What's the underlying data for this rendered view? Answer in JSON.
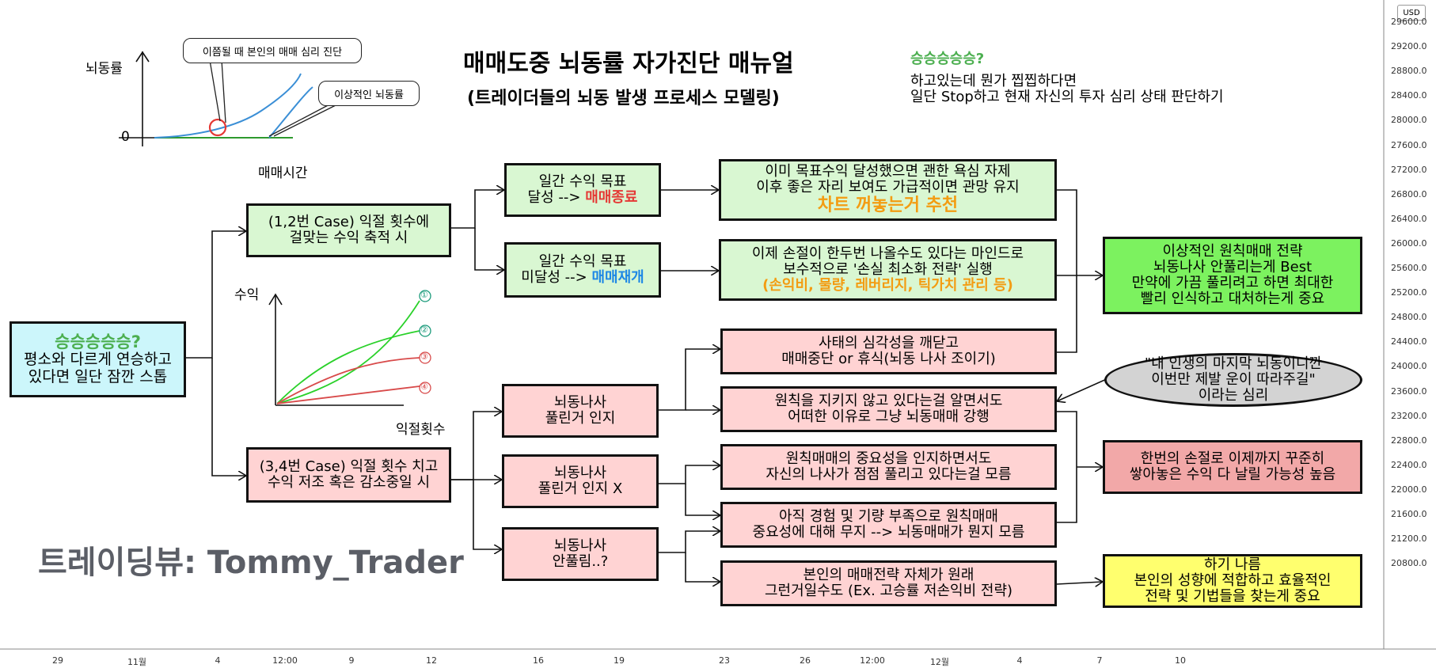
{
  "header": {
    "title": "매매도중 뇌동률 자가진단 매뉴얼",
    "subtitle": "(트레이더들의 뇌동 발생 프로세스 모델링)",
    "note_heading": "승승승승승?",
    "note_line1": "하고있는데 뭔가 찝찝하다면",
    "note_line2": "일단 Stop하고 현재 자신의 투자 심리 상태 판단하기"
  },
  "chart1": {
    "ylabel": "뇌동률",
    "xlabel": "매매시간",
    "zero_label": "0",
    "callout_diagnose": "이쯤될 때 본인의 매매 심리 진단",
    "callout_ideal": "이상적인 뇌동률"
  },
  "chart2": {
    "ylabel": "수익",
    "xlabel": "익절횟수",
    "markers": [
      "①",
      "②",
      "③",
      "④"
    ]
  },
  "start_box": {
    "heading": "승승승승승?",
    "line1": "평소와 다르게 연승하고",
    "line2": "있다면 일단 잠깐 스톱"
  },
  "case12": {
    "line1": "(1,2번 Case) 익절 횟수에",
    "line2": "걸맞는 수익 축적 시"
  },
  "case34": {
    "line1": "(3,4번 Case) 익절 횟수 치고",
    "line2": "수익 저조 혹은 감소중일 시"
  },
  "goal_met": {
    "line1": "일간 수익 목표",
    "line2_prefix": "달성 --> ",
    "line2_highlight": "매매종료"
  },
  "goal_unmet": {
    "line1": "일간 수익 목표",
    "line2_prefix": "미달성 --> ",
    "line2_highlight": "매매재개"
  },
  "result_met": {
    "line1": "이미 목표수익 달성했으면 괜한 욕심 자제",
    "line2": "이후 좋은 자리 보여도 가급적이면 관망 유지",
    "line3": "차트 꺼놓는거 추천"
  },
  "result_unmet": {
    "line1": "이제 손절이 한두번 나올수도 있다는 마인드로",
    "line2": "보수적으로 '손실 최소화 전략' 실행",
    "line3": "(손익비, 물량, 레버리지, 틱가치 관리 등)"
  },
  "ideal_box": {
    "line1": "이상적인 원칙매매 전략",
    "line2": "뇌동나사 안풀리는게 Best",
    "line3": "만약에 가끔 풀리려고 하면 최대한",
    "line4": "빨리 인식하고 대처하는게 중요"
  },
  "aware": {
    "line1": "뇌동나사",
    "line2": "풀린거 인지"
  },
  "unaware": {
    "line1": "뇌동나사",
    "line2": "풀린거 인지 X"
  },
  "notloose": {
    "line1": "뇌동나사",
    "line2": "안풀림..?"
  },
  "stop_box": {
    "line1": "사태의 심각성을 깨닫고",
    "line2": "매매중단 or 휴식(뇌동 나사 조이기)"
  },
  "force_box": {
    "line1": "원칙을 지키지 않고 있다는걸 알면서도",
    "line2": "어떠한 이유로 그냥 뇌동매매 강행"
  },
  "ignorant_box": {
    "line1": "원칙매매의 중요성을 인지하면서도",
    "line2": "자신의 나사가 점점 풀리고 있다는걸 모름"
  },
  "inexperience_box": {
    "line1": "아직 경험 및 기량 부족으로 원칙매매",
    "line2": "중요성에 대해 무지 --> 뇌동매매가 뭔지 모름"
  },
  "strategy_box": {
    "line1": "본인의 매매전략 자체가 원래",
    "line2": "그런거일수도 (Ex. 고승률 저손익비 전략)"
  },
  "psychology_bubble": {
    "line1": "\"내 인생의 마지막 뇌동이니깐",
    "line2": "이번만 제발 운이 따라주길\"",
    "line3": "이라는 심리"
  },
  "risk_box": {
    "line1": "한번의 손절로 이제까지 꾸준히",
    "line2": "쌓아놓은 수익 다 날릴 가능성 높음"
  },
  "yellow_box": {
    "line1": "하기 나름",
    "line2": "본인의 성향에 적합하고 효율적인",
    "line3": "전략 및 기법들을 찾는게 중요"
  },
  "watermark": "트레이딩뷰: Tommy_Trader",
  "price_axis": {
    "currency": "USD",
    "ticks": [
      "29600.0",
      "29200.0",
      "28800.0",
      "28400.0",
      "28000.0",
      "27600.0",
      "27200.0",
      "26800.0",
      "26400.0",
      "26000.0",
      "25600.0",
      "25200.0",
      "24800.0",
      "24400.0",
      "24000.0",
      "23600.0",
      "23200.0",
      "22800.0",
      "22400.0",
      "22000.0",
      "21600.0",
      "21200.0",
      "20800.0"
    ]
  },
  "time_axis": {
    "ticks": [
      "29",
      "11월",
      "4",
      "12:00",
      "9",
      "12",
      "16",
      "19",
      "23",
      "26",
      "12:00",
      "12월",
      "4",
      "7",
      "10"
    ]
  },
  "colors": {
    "green_box": "#d9f7d2",
    "pink_box": "#ffd3d3",
    "cyan_box": "#ccf6fb",
    "lime_box": "#7cf25f",
    "rose_box": "#f2a8a8",
    "yellow_box": "#ffff6e",
    "accent_green": "#4caf50",
    "accent_red": "#e53935",
    "accent_blue": "#1e88e5",
    "accent_orange": "#f39c12"
  }
}
